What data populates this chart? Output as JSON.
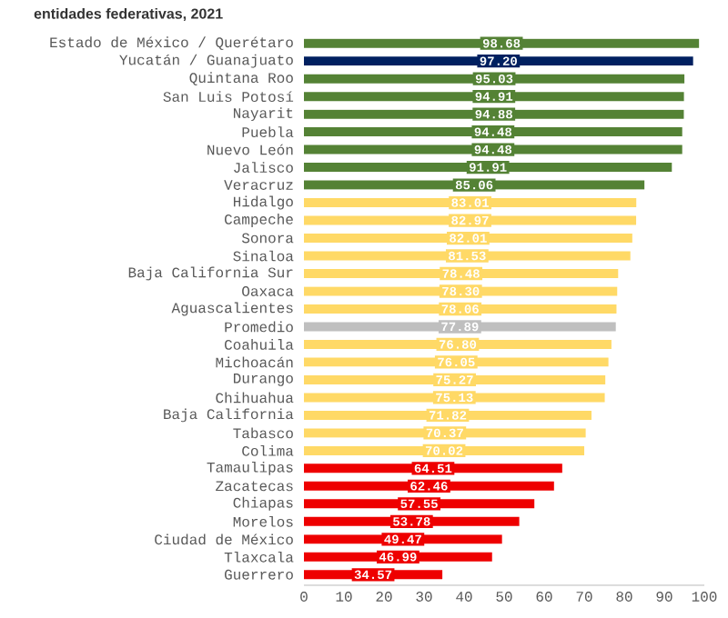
{
  "chart_data": {
    "type": "bar",
    "orientation": "horizontal",
    "title": "entidades federativas, 2021",
    "categories": [
      "Estado de México / Querétaro",
      "Yucatán / Guanajuato",
      "Quintana Roo",
      "San Luis Potosí",
      "Nayarit",
      "Puebla",
      "Nuevo León",
      "Jalisco",
      "Veracruz",
      "Hidalgo",
      "Campeche",
      "Sonora",
      "Sinaloa",
      "Baja California Sur",
      "Oaxaca",
      "Aguascalientes",
      "Promedio",
      "Coahuila",
      "Michoacán",
      "Durango",
      "Chihuahua",
      "Baja California",
      "Tabasco",
      "Colima",
      "Tamaulipas",
      "Zacatecas",
      "Chiapas",
      "Morelos",
      "Ciudad de México",
      "Tlaxcala",
      "Guerrero"
    ],
    "values": [
      98.68,
      97.2,
      95.03,
      94.91,
      94.88,
      94.48,
      94.48,
      91.91,
      85.06,
      83.01,
      82.97,
      82.01,
      81.53,
      78.48,
      78.3,
      78.06,
      77.89,
      76.8,
      76.05,
      75.27,
      75.13,
      71.82,
      70.37,
      70.02,
      64.51,
      62.46,
      57.55,
      53.78,
      49.47,
      46.99,
      34.57
    ],
    "value_labels": [
      "98.68",
      "97.20",
      "95.03",
      "94.91",
      "94.88",
      "94.48",
      "94.48",
      "91.91",
      "85.06",
      "83.01",
      "82.97",
      "82.01",
      "81.53",
      "78.48",
      "78.30",
      "78.06",
      "77.89",
      "76.80",
      "76.05",
      "75.27",
      "75.13",
      "71.82",
      "70.37",
      "70.02",
      "64.51",
      "62.46",
      "57.55",
      "53.78",
      "49.47",
      "46.99",
      "34.57"
    ],
    "colors": [
      "#548235",
      "#002060",
      "#548235",
      "#548235",
      "#548235",
      "#548235",
      "#548235",
      "#548235",
      "#548235",
      "#ffd966",
      "#ffd966",
      "#ffd966",
      "#ffd966",
      "#ffd966",
      "#ffd966",
      "#ffd966",
      "#bfbfbf",
      "#ffd966",
      "#ffd966",
      "#ffd966",
      "#ffd966",
      "#ffd966",
      "#ffd966",
      "#ffd966",
      "#ee0000",
      "#ee0000",
      "#ee0000",
      "#ee0000",
      "#ee0000",
      "#ee0000",
      "#ee0000"
    ],
    "xlim": [
      0,
      100
    ],
    "xticks": [
      0,
      10,
      20,
      30,
      40,
      50,
      60,
      70,
      80,
      90,
      100
    ],
    "grid": false
  }
}
